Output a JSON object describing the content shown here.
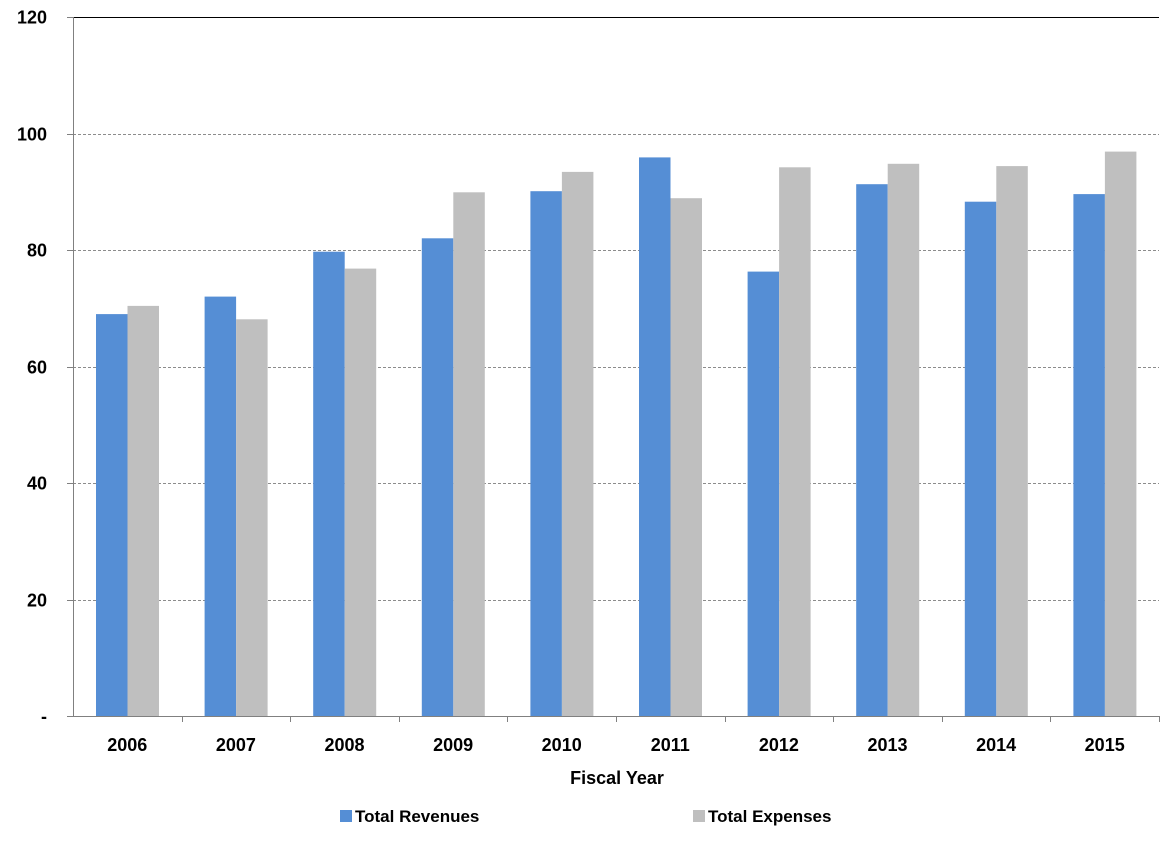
{
  "chart_data": {
    "type": "bar",
    "categories": [
      "2006",
      "2007",
      "2008",
      "2009",
      "2010",
      "2011",
      "2012",
      "2013",
      "2014",
      "2015"
    ],
    "series": [
      {
        "name": "Total Revenues",
        "color": "#558ED5",
        "values": [
          69.0,
          72.0,
          79.7,
          82.0,
          90.1,
          95.9,
          76.3,
          91.3,
          88.3,
          89.6
        ]
      },
      {
        "name": "Total Expenses",
        "color": "#BFBFBF",
        "values": [
          70.4,
          68.1,
          76.8,
          89.9,
          93.4,
          88.9,
          94.2,
          94.8,
          94.4,
          96.9
        ]
      }
    ],
    "xlabel": "Fiscal Year",
    "ylabel": "",
    "ylim": [
      0,
      120
    ],
    "yticks": [
      0,
      20,
      40,
      60,
      80,
      100,
      120
    ],
    "ytick_labels": [
      "-",
      "20",
      "40",
      "60",
      "80",
      "100",
      "120"
    ],
    "grid": true,
    "legend_position": "bottom"
  }
}
